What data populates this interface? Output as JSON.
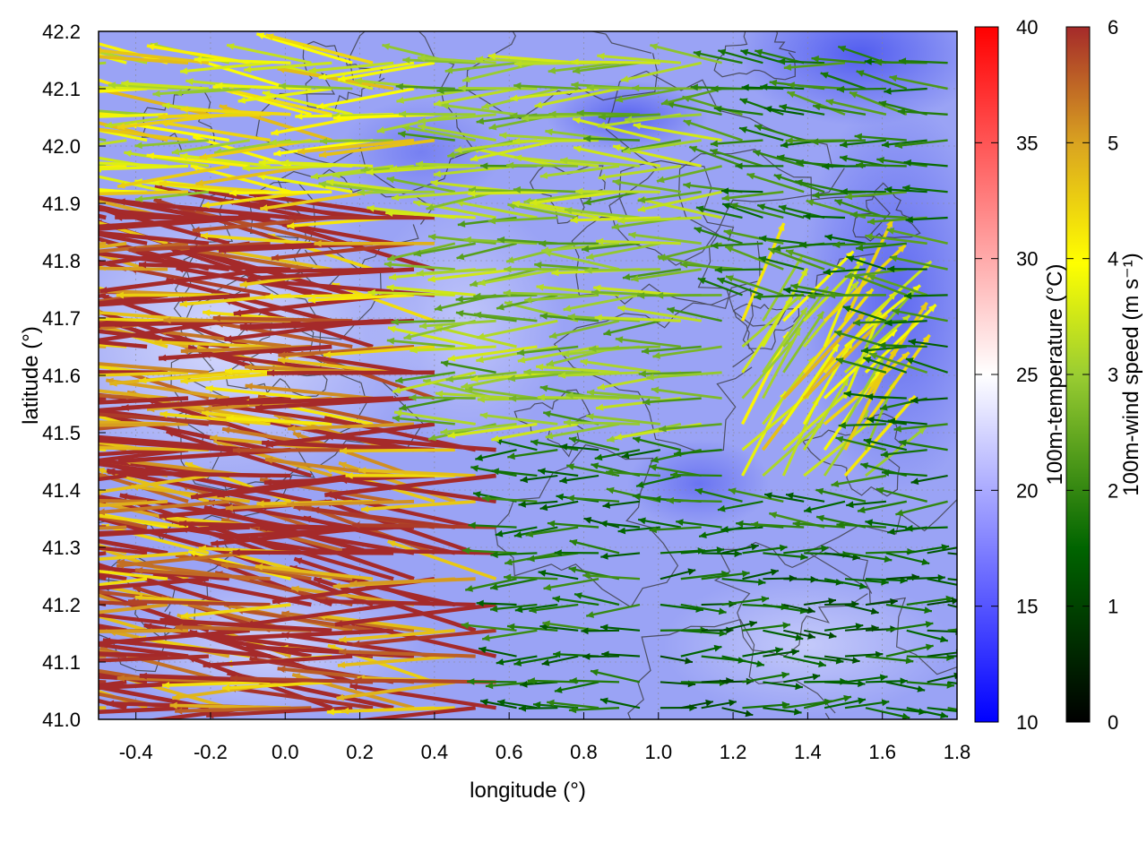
{
  "chart_data": {
    "type": "vector-field",
    "xlabel": "longitude (°)",
    "ylabel": "latitude (°)",
    "xlim": [
      -0.5,
      1.8
    ],
    "ylim": [
      41.0,
      42.2
    ],
    "xticks": [
      "-0.4",
      "-0.2",
      "0.0",
      "0.2",
      "0.4",
      "0.6",
      "0.8",
      "1.0",
      "1.2",
      "1.4",
      "1.6",
      "1.8"
    ],
    "yticks": [
      "41.0",
      "41.1",
      "41.2",
      "41.3",
      "41.4",
      "41.5",
      "41.6",
      "41.7",
      "41.8",
      "41.9",
      "42.0",
      "42.1",
      "42.2"
    ],
    "grid": true,
    "colorbars": [
      {
        "label": "100m-temperature (°C)",
        "range": [
          10,
          40
        ],
        "ticks": [
          "10",
          "15",
          "20",
          "25",
          "30",
          "35",
          "40"
        ],
        "colors": [
          "#0000ff",
          "#ffffff",
          "#ff0000"
        ]
      },
      {
        "label": "100m-wind speed (m s⁻¹)",
        "range": [
          0,
          6
        ],
        "ticks": [
          "0",
          "1",
          "2",
          "3",
          "4",
          "5",
          "6"
        ],
        "colors": [
          "#000000",
          "#006400",
          "#9acd32",
          "#ffff00",
          "#daa520",
          "#cd853f",
          "#a52a2a"
        ]
      }
    ],
    "temperature_field_range": [
      14,
      22
    ],
    "wind_field": {
      "direction": "predominantly easterly flow (vectors pointing west); strongest winds (~5-6 m s⁻¹) over western half 41.0–41.9°N; weak winds (<2 m s⁻¹) in south-east corner with westerly component",
      "regions": [
        {
          "lon": [
            -0.5,
            0.6
          ],
          "lat": [
            41.0,
            41.9
          ],
          "speed": 6,
          "u": -1,
          "v": 0.1
        },
        {
          "lon": [
            -0.5,
            0.4
          ],
          "lat": [
            41.9,
            42.2
          ],
          "speed": 4,
          "u": -1,
          "v": 0.05
        },
        {
          "lon": [
            0.4,
            1.2
          ],
          "lat": [
            41.5,
            42.2
          ],
          "speed": 3,
          "u": -1,
          "v": 0.0
        },
        {
          "lon": [
            1.2,
            1.8
          ],
          "lat": [
            41.6,
            42.2
          ],
          "speed": 2,
          "u": -0.8,
          "v": 0.1
        },
        {
          "lon": [
            1.0,
            1.8
          ],
          "lat": [
            41.0,
            41.3
          ],
          "speed": 1.5,
          "u": 1,
          "v": 0.0
        },
        {
          "lon": [
            1.2,
            1.6
          ],
          "lat": [
            41.4,
            41.7
          ],
          "speed": 4,
          "u": 0.6,
          "v": 0.8
        }
      ]
    }
  }
}
